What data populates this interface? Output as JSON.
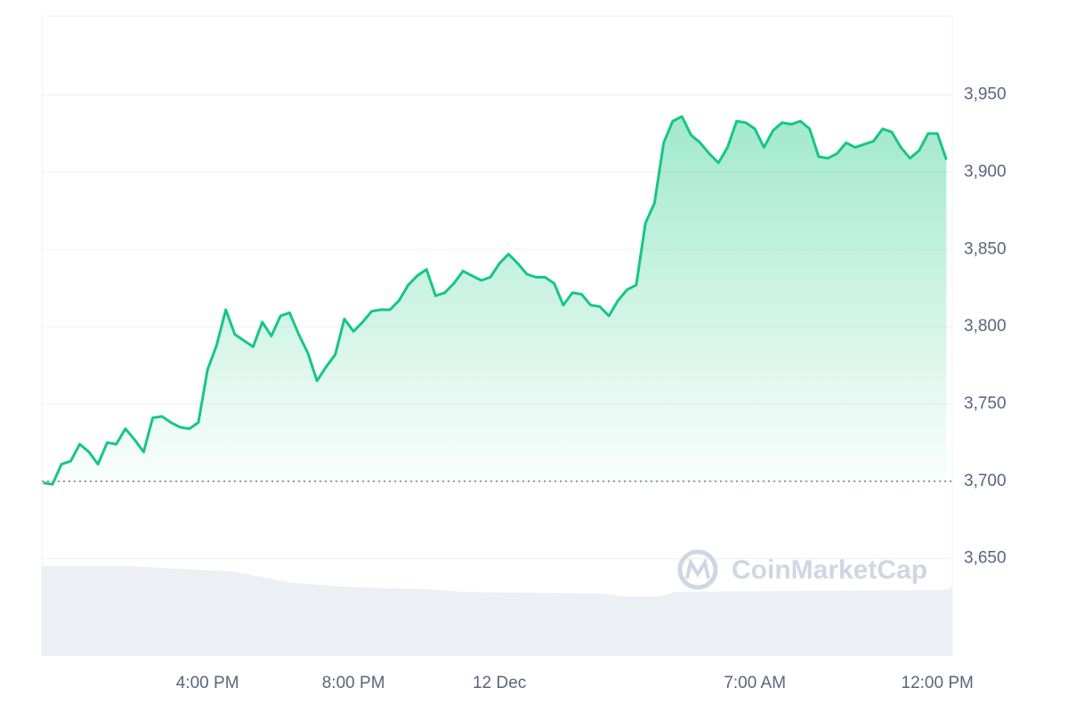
{
  "chart_data": {
    "type": "area-line",
    "watermark": "CoinMarketCap",
    "color": "#16c784",
    "reference_line": 3700,
    "grid": true,
    "xlim": [
      11.46,
      36.41
    ],
    "ylim": [
      3587,
      4001
    ],
    "yticks": [
      {
        "value": 3650,
        "label": "3,650"
      },
      {
        "value": 3700,
        "label": "3,700"
      },
      {
        "value": 3750,
        "label": "3,750"
      },
      {
        "value": 3800,
        "label": "3,800"
      },
      {
        "value": 3850,
        "label": "3,850"
      },
      {
        "value": 3900,
        "label": "3,900"
      },
      {
        "value": 3950,
        "label": "3,950"
      }
    ],
    "xticks": [
      {
        "value": 16,
        "label": "4:00 PM"
      },
      {
        "value": 20,
        "label": "8:00 PM"
      },
      {
        "value": 24,
        "label": "12 Dec"
      },
      {
        "value": 31,
        "label": "7:00 AM"
      },
      {
        "value": 36,
        "label": "12:00 PM"
      }
    ],
    "x": [
      11.5,
      11.75,
      12,
      12.25,
      12.5,
      12.75,
      13,
      13.25,
      13.5,
      13.75,
      14,
      14.25,
      14.5,
      14.75,
      15,
      15.25,
      15.5,
      15.75,
      16,
      16.25,
      16.5,
      16.75,
      17,
      17.25,
      17.5,
      17.75,
      18,
      18.25,
      18.5,
      18.75,
      19,
      19.25,
      19.5,
      19.75,
      20,
      20.25,
      20.5,
      20.75,
      21,
      21.25,
      21.5,
      21.75,
      22,
      22.25,
      22.5,
      22.75,
      23,
      23.25,
      23.5,
      23.75,
      24,
      24.25,
      24.5,
      24.75,
      25,
      25.25,
      25.5,
      25.75,
      26,
      26.25,
      26.5,
      26.75,
      27,
      27.25,
      27.5,
      27.75,
      28,
      28.25,
      28.5,
      28.75,
      29,
      29.25,
      29.5,
      29.75,
      30,
      30.25,
      30.5,
      30.75,
      31,
      31.25,
      31.5,
      31.75,
      32,
      32.25,
      32.5,
      32.75,
      33,
      33.25,
      33.5,
      33.75,
      34,
      34.25,
      34.5,
      34.75,
      35,
      35.25,
      35.5,
      35.75,
      36,
      36.25
    ],
    "values": [
      3699,
      3698,
      3711,
      3713,
      3724,
      3719,
      3711,
      3725,
      3724,
      3734,
      3727,
      3719,
      3741,
      3742,
      3738,
      3735,
      3734,
      3738,
      3772,
      3788,
      3811,
      3795,
      3791,
      3787,
      3803,
      3794,
      3807,
      3809,
      3795,
      3783,
      3765,
      3774,
      3782,
      3805,
      3797,
      3803,
      3810,
      3811,
      3811,
      3817,
      3827,
      3833,
      3837,
      3820,
      3822,
      3828,
      3836,
      3833,
      3830,
      3832,
      3841,
      3847,
      3841,
      3834,
      3832,
      3832,
      3828,
      3814,
      3822,
      3821,
      3814,
      3813,
      3807,
      3817,
      3824,
      3827,
      3867,
      3880,
      3919,
      3933,
      3936,
      3924,
      3919,
      3912,
      3906,
      3916,
      3933,
      3932,
      3928,
      3916,
      3927,
      3932,
      3931,
      3933,
      3928,
      3910,
      3909,
      3912,
      3919,
      3916,
      3918,
      3920,
      3928,
      3926,
      3916,
      3909,
      3914,
      3925,
      3925,
      3908
    ]
  }
}
